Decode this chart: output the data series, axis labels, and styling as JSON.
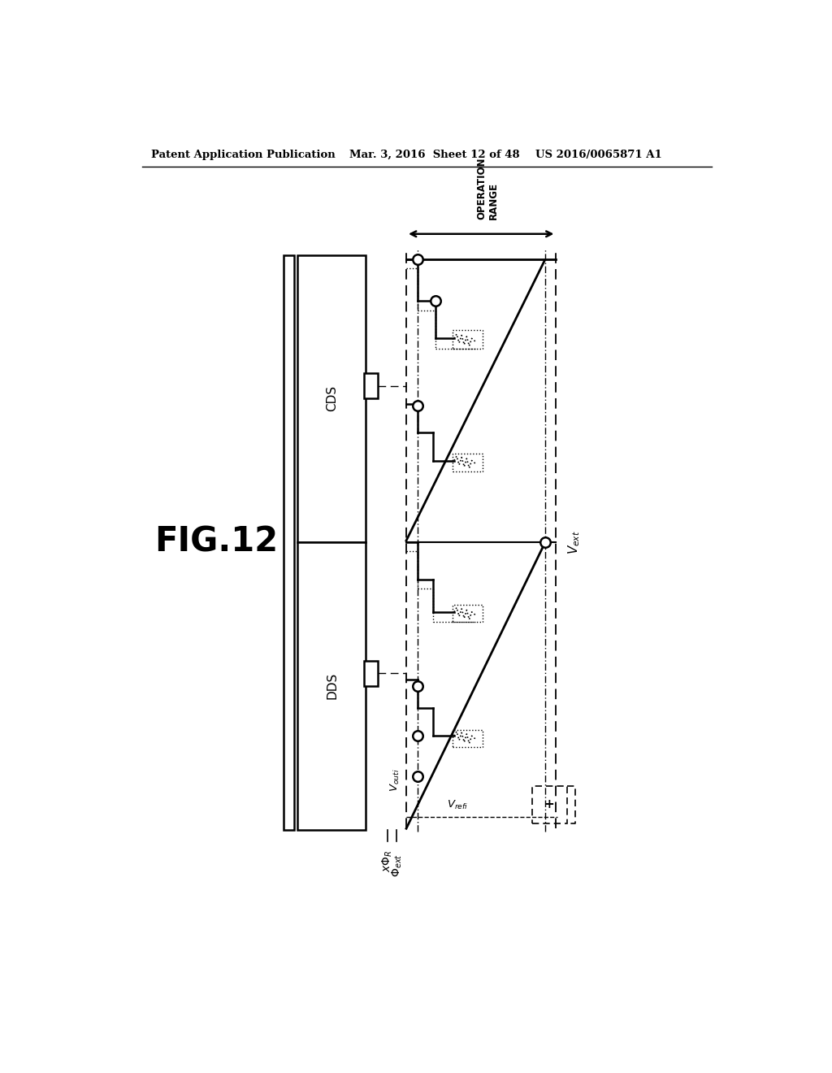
{
  "header_left": "Patent Application Publication",
  "header_mid": "Mar. 3, 2016  Sheet 12 of 48",
  "header_right": "US 2016/0065871 A1",
  "fig_label": "FIG.12",
  "background_color": "#ffffff",
  "line_color": "#000000"
}
